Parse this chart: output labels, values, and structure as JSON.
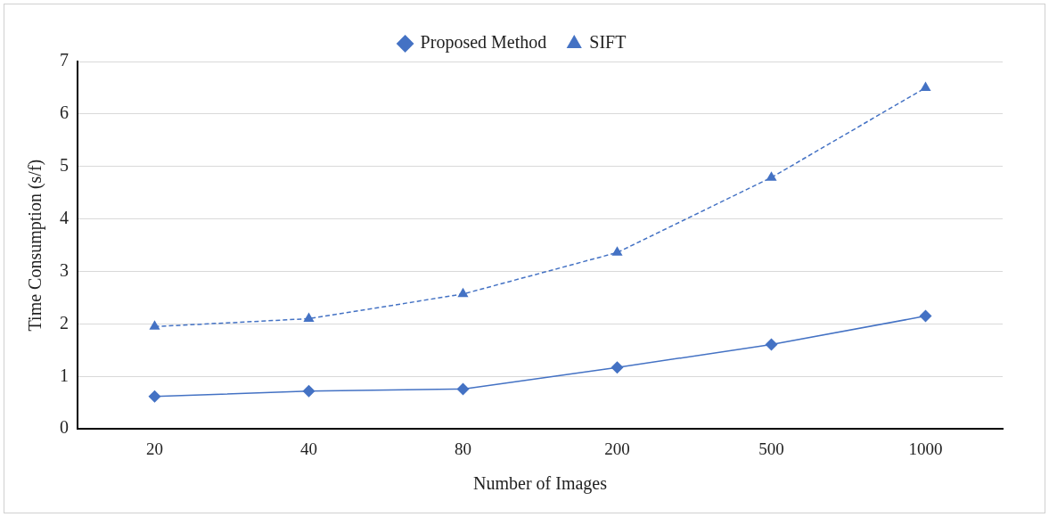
{
  "chart_data": {
    "type": "line",
    "xlabel": "Number of Images",
    "ylabel": "Time Consumption (s/f)",
    "categories": [
      "20",
      "40",
      "80",
      "200",
      "500",
      "1000"
    ],
    "series": [
      {
        "name": "Proposed Method",
        "color": "#4472c4",
        "marker": "diamond",
        "line_style": "solid",
        "values": [
          0.62,
          0.72,
          0.76,
          1.17,
          1.61,
          2.15
        ]
      },
      {
        "name": "SIFT",
        "color": "#4472c4",
        "marker": "triangle",
        "line_style": "dashed",
        "values": [
          1.95,
          2.1,
          2.57,
          3.36,
          4.79,
          6.5
        ]
      }
    ],
    "ylim": [
      0,
      7
    ],
    "yticks": [
      0,
      1,
      2,
      3,
      4,
      5,
      6,
      7
    ],
    "grid": "y",
    "legend": "top"
  }
}
